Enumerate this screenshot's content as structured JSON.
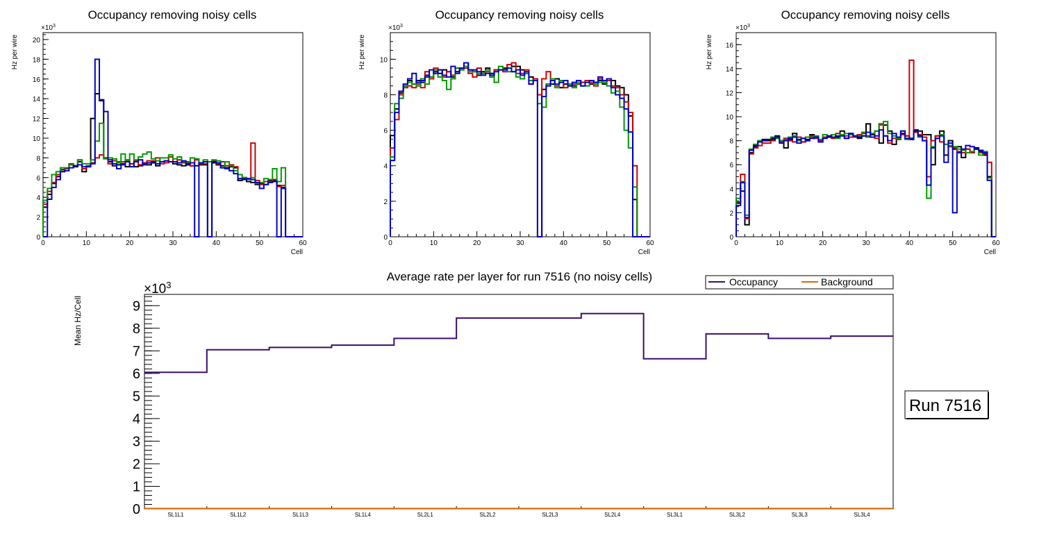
{
  "colors": {
    "black": "#000000",
    "red": "#cc0000",
    "green": "#009900",
    "blue": "#0000cc",
    "occupancy": "#3a0d6b",
    "background": "#d96a00"
  },
  "chart_data": [
    {
      "type": "histogram",
      "title": "Occupancy removing noisy cells",
      "xlabel": "Cell",
      "ylabel": "Hz per wire",
      "exponent_label": "×10",
      "exponent_power": "3",
      "xlim": [
        0,
        60
      ],
      "ylim": [
        0,
        20.7
      ],
      "xticks": [
        0,
        10,
        20,
        30,
        40,
        50,
        60
      ],
      "yticks": [
        0,
        2,
        4,
        6,
        8,
        10,
        12,
        14,
        16,
        18,
        20
      ],
      "bins": 60,
      "series": [
        {
          "name": "black",
          "color": "#000000",
          "values": [
            3.0,
            4.3,
            5.4,
            6.1,
            6.8,
            6.9,
            7.3,
            7.1,
            7.6,
            6.6,
            7.1,
            12.0,
            14.5,
            13.8,
            8.0,
            7.6,
            7.2,
            7.3,
            7.4,
            7.1,
            7.4,
            7.1,
            7.2,
            7.4,
            7.3,
            7.5,
            7.2,
            7.6,
            7.7,
            7.6,
            7.4,
            7.3,
            7.2,
            7.3,
            7.2,
            7.2,
            7.3,
            7.3,
            0.0,
            7.5,
            7.3,
            7.2,
            7.0,
            7.1,
            7.0,
            5.7,
            5.9,
            5.6,
            5.5,
            5.3,
            5.4,
            5.3,
            5.7,
            5.7,
            5.2,
            5.0,
            0.0,
            0.0,
            0.0,
            0.0
          ]
        },
        {
          "name": "red",
          "color": "#cc0000",
          "values": [
            3.3,
            4.6,
            5.5,
            6.3,
            6.6,
            6.9,
            7.4,
            7.2,
            7.8,
            6.9,
            7.2,
            7.5,
            8.0,
            8.3,
            8.0,
            7.4,
            7.7,
            7.6,
            7.6,
            7.8,
            7.4,
            7.7,
            7.3,
            7.5,
            7.7,
            7.7,
            8.0,
            7.4,
            7.5,
            8.1,
            7.6,
            7.8,
            7.5,
            7.6,
            7.2,
            7.8,
            7.4,
            7.4,
            7.6,
            7.7,
            7.4,
            7.6,
            7.2,
            7.3,
            7.1,
            5.9,
            6.0,
            5.9,
            9.5,
            5.7,
            5.3,
            5.6,
            5.6,
            5.8,
            5.1,
            5.2,
            0.0,
            0.0,
            0.0,
            0.0
          ]
        },
        {
          "name": "green",
          "color": "#009900",
          "values": [
            3.7,
            4.9,
            6.3,
            6.6,
            7.0,
            7.0,
            7.3,
            7.2,
            7.8,
            7.4,
            7.4,
            7.8,
            9.7,
            11.5,
            7.9,
            8.0,
            7.9,
            7.5,
            8.4,
            7.7,
            8.4,
            7.8,
            8.1,
            8.4,
            8.6,
            7.9,
            7.7,
            8.0,
            8.0,
            8.3,
            7.9,
            8.1,
            7.6,
            7.5,
            8.0,
            7.9,
            7.5,
            7.8,
            7.6,
            7.8,
            7.7,
            7.0,
            7.6,
            7.2,
            6.7,
            6.3,
            6.0,
            5.8,
            6.0,
            5.4,
            5.5,
            5.9,
            5.8,
            6.9,
            5.6,
            7.0,
            0.0,
            0.0,
            0.0,
            0.0
          ]
        },
        {
          "name": "blue",
          "color": "#0000cc",
          "values": [
            0.0,
            3.8,
            5.0,
            5.8,
            6.6,
            6.7,
            7.0,
            7.2,
            7.3,
            7.1,
            7.1,
            7.4,
            18.0,
            13.9,
            12.7,
            7.8,
            7.4,
            6.9,
            7.3,
            7.6,
            7.1,
            7.6,
            7.8,
            7.3,
            7.5,
            7.6,
            7.4,
            7.6,
            7.7,
            7.6,
            7.6,
            7.5,
            7.7,
            7.4,
            7.5,
            0.0,
            7.5,
            7.6,
            0.0,
            7.6,
            7.5,
            7.0,
            6.9,
            6.7,
            6.4,
            5.9,
            5.8,
            5.9,
            5.8,
            5.5,
            4.9,
            5.3,
            5.5,
            5.6,
            0.0,
            4.9,
            0.0,
            0.0,
            0.0,
            0.0
          ]
        }
      ]
    },
    {
      "type": "histogram",
      "title": "Occupancy removing noisy cells",
      "xlabel": "Cell",
      "ylabel": "Hz per wire",
      "exponent_label": "×10",
      "exponent_power": "3",
      "xlim": [
        0,
        60
      ],
      "ylim": [
        0,
        11.5
      ],
      "xticks": [
        0,
        10,
        20,
        30,
        40,
        50,
        60
      ],
      "yticks": [
        0,
        2,
        4,
        6,
        8,
        10
      ],
      "bins": 60,
      "series": [
        {
          "name": "black",
          "color": "#000000",
          "values": [
            5.7,
            7.2,
            8.1,
            8.5,
            8.8,
            8.6,
            8.8,
            8.7,
            9.1,
            9.0,
            9.3,
            9.2,
            9.4,
            9.3,
            9.0,
            9.3,
            9.5,
            9.8,
            9.4,
            9.3,
            9.1,
            9.3,
            9.5,
            9.2,
            9.4,
            9.4,
            9.5,
            9.7,
            9.6,
            9.6,
            9.4,
            9.2,
            9.0,
            8.9,
            0.0,
            8.3,
            8.6,
            8.6,
            8.9,
            8.4,
            8.6,
            8.6,
            8.5,
            8.6,
            8.7,
            8.8,
            8.6,
            8.7,
            8.8,
            8.6,
            8.9,
            8.8,
            8.5,
            8.4,
            8.0,
            6.8,
            2.1,
            0.0,
            0.0,
            0.0
          ]
        },
        {
          "name": "red",
          "color": "#cc0000",
          "values": [
            5.0,
            6.6,
            8.0,
            8.4,
            8.5,
            8.4,
            8.6,
            8.4,
            9.3,
            8.9,
            9.5,
            9.4,
            9.0,
            9.3,
            9.1,
            9.5,
            9.4,
            9.5,
            9.2,
            9.0,
            9.5,
            9.2,
            9.3,
            9.0,
            9.4,
            9.4,
            9.3,
            9.7,
            9.8,
            9.2,
            9.2,
            9.4,
            8.6,
            8.9,
            8.0,
            8.9,
            9.3,
            8.8,
            8.5,
            8.7,
            8.4,
            8.5,
            8.6,
            8.6,
            8.7,
            8.8,
            8.7,
            8.5,
            8.9,
            8.7,
            8.8,
            8.5,
            8.4,
            8.0,
            7.6,
            7.0,
            4.0,
            0.0,
            0.0,
            0.0
          ]
        },
        {
          "name": "green",
          "color": "#009900",
          "values": [
            4.5,
            7.5,
            7.8,
            8.5,
            8.7,
            8.6,
            8.5,
            8.9,
            8.6,
            9.0,
            9.4,
            9.0,
            8.8,
            8.3,
            8.9,
            9.5,
            9.4,
            9.6,
            9.3,
            9.3,
            9.2,
            9.2,
            9.4,
            9.0,
            8.7,
            9.6,
            9.4,
            9.3,
            9.3,
            9.0,
            8.9,
            9.2,
            8.8,
            8.8,
            7.5,
            7.3,
            8.6,
            8.9,
            8.4,
            8.8,
            8.8,
            8.6,
            8.4,
            8.7,
            8.5,
            8.5,
            8.8,
            8.6,
            8.7,
            8.7,
            8.5,
            8.1,
            8.2,
            7.3,
            6.0,
            5.0,
            2.8,
            0.0,
            0.0,
            0.0
          ]
        },
        {
          "name": "blue",
          "color": "#0000cc",
          "values": [
            4.3,
            7.0,
            8.2,
            8.6,
            8.9,
            9.2,
            8.7,
            8.8,
            9.0,
            9.4,
            9.2,
            9.4,
            9.1,
            9.0,
            9.6,
            9.2,
            9.5,
            9.8,
            9.4,
            9.4,
            9.3,
            9.1,
            9.2,
            9.1,
            9.3,
            9.4,
            9.4,
            9.5,
            9.3,
            9.4,
            9.1,
            9.3,
            8.6,
            8.8,
            0.0,
            7.9,
            8.5,
            8.8,
            8.6,
            8.7,
            8.8,
            8.5,
            8.7,
            8.8,
            8.5,
            8.7,
            8.8,
            8.7,
            9.0,
            8.8,
            8.9,
            8.4,
            8.0,
            7.8,
            7.2,
            5.9,
            0.0,
            0.0,
            0.0,
            0.0
          ]
        }
      ]
    },
    {
      "type": "histogram",
      "title": "Occupancy removing noisy cells",
      "xlabel": "Cell",
      "ylabel": "Hz per wire",
      "exponent_label": "×10",
      "exponent_power": "3",
      "xlim": [
        0,
        60
      ],
      "ylim": [
        0,
        17.0
      ],
      "xticks": [
        0,
        10,
        20,
        30,
        40,
        50,
        60
      ],
      "yticks": [
        0,
        2,
        4,
        6,
        8,
        10,
        12,
        14,
        16
      ],
      "bins": 60,
      "series": [
        {
          "name": "black",
          "color": "#000000",
          "values": [
            2.8,
            3.8,
            1.0,
            7.0,
            7.5,
            7.9,
            8.1,
            8.0,
            8.2,
            8.4,
            8.0,
            7.4,
            8.1,
            8.6,
            8.1,
            7.9,
            8.1,
            8.5,
            8.2,
            7.9,
            8.3,
            8.3,
            8.5,
            8.3,
            8.8,
            8.2,
            8.6,
            8.4,
            8.2,
            8.4,
            9.4,
            8.5,
            8.8,
            7.8,
            9.3,
            8.8,
            7.7,
            8.3,
            8.6,
            8.4,
            8.1,
            8.9,
            8.8,
            8.5,
            8.5,
            6.0,
            8.4,
            8.8,
            6.8,
            8.0,
            7.3,
            7.5,
            6.6,
            7.3,
            7.0,
            7.4,
            7.1,
            6.8,
            5.0,
            0.0
          ]
        },
        {
          "name": "red",
          "color": "#cc0000",
          "values": [
            2.9,
            5.2,
            1.5,
            6.9,
            7.4,
            7.6,
            7.8,
            7.8,
            8.0,
            8.2,
            7.9,
            8.2,
            8.0,
            7.9,
            8.3,
            7.9,
            8.0,
            8.4,
            8.2,
            8.0,
            8.3,
            8.4,
            8.2,
            8.6,
            8.5,
            8.4,
            8.3,
            8.3,
            8.5,
            8.6,
            8.4,
            8.3,
            8.2,
            9.4,
            8.4,
            7.8,
            8.2,
            8.1,
            8.5,
            8.4,
            14.7,
            8.7,
            8.5,
            8.3,
            5.0,
            8.0,
            8.4,
            7.9,
            7.7,
            7.5,
            7.4,
            7.1,
            7.0,
            7.3,
            7.0,
            7.3,
            7.0,
            6.9,
            6.2,
            0.0
          ]
        },
        {
          "name": "green",
          "color": "#009900",
          "values": [
            3.2,
            4.6,
            1.8,
            7.3,
            7.7,
            8.0,
            8.0,
            8.1,
            8.3,
            8.2,
            8.0,
            8.1,
            8.3,
            8.4,
            8.0,
            8.2,
            8.3,
            8.3,
            8.4,
            8.1,
            8.5,
            8.4,
            8.5,
            8.2,
            8.5,
            8.6,
            8.5,
            8.4,
            8.4,
            8.7,
            8.3,
            8.6,
            8.8,
            9.3,
            9.6,
            8.6,
            8.4,
            8.2,
            8.8,
            8.1,
            8.2,
            8.8,
            8.3,
            8.0,
            3.2,
            7.5,
            8.2,
            8.5,
            7.7,
            7.6,
            7.5,
            7.3,
            7.2,
            7.0,
            7.1,
            7.3,
            6.8,
            7.1,
            4.9,
            0.0
          ]
        },
        {
          "name": "blue",
          "color": "#0000cc",
          "values": [
            2.6,
            4.5,
            1.6,
            7.2,
            7.6,
            7.9,
            8.0,
            8.1,
            8.1,
            8.3,
            7.8,
            8.0,
            8.2,
            8.3,
            7.8,
            8.2,
            8.0,
            8.2,
            8.3,
            7.9,
            8.2,
            8.4,
            8.3,
            8.4,
            8.4,
            8.2,
            8.6,
            8.4,
            8.3,
            8.4,
            8.7,
            8.3,
            8.4,
            8.9,
            8.4,
            8.0,
            8.6,
            8.3,
            8.8,
            8.2,
            8.2,
            8.8,
            8.4,
            8.0,
            4.3,
            7.4,
            8.2,
            8.4,
            6.2,
            7.8,
            2.0,
            7.0,
            7.3,
            7.6,
            7.5,
            7.3,
            7.2,
            7.0,
            4.7,
            0.0
          ]
        }
      ]
    },
    {
      "type": "histogram",
      "title": "Average rate per layer for run 7516 (no noisy cells)",
      "xlabel": "",
      "ylabel": "Mean Hz/Cell",
      "exponent_label": "×10",
      "exponent_power": "3",
      "categories": [
        "SL1L1",
        "SL1L2",
        "SL1L3",
        "SL1L4",
        "SL2L1",
        "SL2L2",
        "SL2L3",
        "SL2L4",
        "SL3L1",
        "SL3L2",
        "SL3L3",
        "SL3L4"
      ],
      "ylim": [
        0,
        9.5
      ],
      "yticks": [
        0,
        1,
        2,
        3,
        4,
        5,
        6,
        7,
        8,
        9
      ],
      "legend": {
        "placement": "top-right",
        "entries": [
          "Occupancy",
          "Background"
        ]
      },
      "run_label": "Run 7516",
      "series": [
        {
          "name": "Occupancy",
          "color": "#3a0d6b",
          "values": [
            6.05,
            7.05,
            7.15,
            7.25,
            7.55,
            8.45,
            8.45,
            8.65,
            6.65,
            7.75,
            7.55,
            7.65
          ]
        },
        {
          "name": "Background",
          "color": "#d96a00",
          "values": [
            0.02,
            0.02,
            0.02,
            0.02,
            0.02,
            0.02,
            0.02,
            0.02,
            0.02,
            0.02,
            0.02,
            0.02
          ]
        }
      ]
    }
  ]
}
